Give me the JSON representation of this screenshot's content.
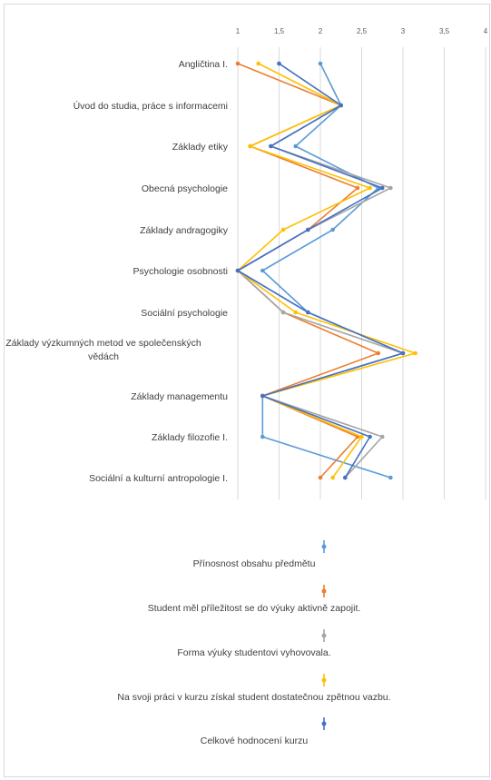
{
  "chart_data": {
    "type": "line",
    "orientation": "horizontal-values",
    "x_ticks": [
      "1",
      "1,5",
      "2",
      "2,5",
      "3",
      "3,5",
      "4"
    ],
    "xlim": [
      1,
      4
    ],
    "grid": true,
    "legend_position": "bottom",
    "categories": [
      "Angličtina I.",
      "Úvod do studia, práce s informacemi",
      "Základy etiky",
      "Obecná psychologie",
      "Základy andragogiky",
      "Psychologie osobnosti",
      "Sociální psychologie",
      "Základy výzkumných metod ve společenských vědách",
      "Základy managementu",
      "Základy filozofie I.",
      "Sociální a kulturní antropologie I."
    ],
    "series": [
      {
        "name": "Přínosnost obsahu předmětu",
        "color": "#5b9bd5",
        "values": [
          2.0,
          2.25,
          1.7,
          2.7,
          2.15,
          1.3,
          1.85,
          3.0,
          1.3,
          1.3,
          2.85
        ]
      },
      {
        "name": "Student měl příležitost se do výuky aktivně zapojit.",
        "color": "#ed7d31",
        "values": [
          1.0,
          2.25,
          1.15,
          2.45,
          1.85,
          1.0,
          1.55,
          2.7,
          1.3,
          2.45,
          2.0
        ]
      },
      {
        "name": "Forma výuky studentovi vyhovovala.",
        "color": "#a5a5a5",
        "values": [
          1.5,
          2.25,
          1.4,
          2.85,
          1.85,
          1.0,
          1.55,
          3.0,
          1.3,
          2.75,
          2.3
        ]
      },
      {
        "name": "Na svoji práci v kurzu získal student dostatečnou zpětnou vazbu.",
        "color": "#ffc000",
        "values": [
          1.25,
          2.25,
          1.15,
          2.6,
          1.55,
          1.0,
          1.7,
          3.15,
          1.3,
          2.5,
          2.15
        ]
      },
      {
        "name": "Celkové hodnocení kurzu",
        "color": "#4472c4",
        "values": [
          1.5,
          2.25,
          1.4,
          2.75,
          1.85,
          1.0,
          1.85,
          3.0,
          1.3,
          2.6,
          2.3
        ]
      }
    ]
  }
}
